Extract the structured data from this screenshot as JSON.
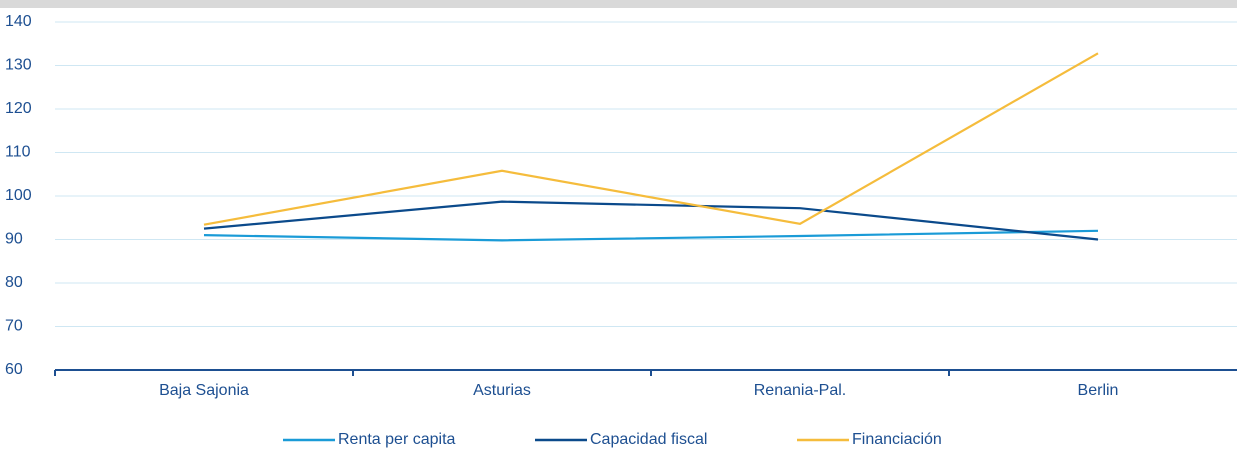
{
  "chart_data": {
    "type": "line",
    "categories": [
      "Baja Sajonia",
      "Asturias",
      "Renania-Pal.",
      "Berlin"
    ],
    "series": [
      {
        "name": "Renta per capita",
        "color": "#1a9bd7",
        "values": [
          91,
          89.8,
          90.8,
          92
        ]
      },
      {
        "name": "Capacidad fiscal",
        "color": "#0b4a8b",
        "values": [
          92.5,
          98.7,
          97.2,
          90
        ]
      },
      {
        "name": "Financiación",
        "color": "#f5bc3c",
        "values": [
          93.4,
          105.8,
          93.6,
          132.8
        ]
      }
    ],
    "ylim": [
      60,
      140
    ],
    "yticks": [
      60,
      70,
      80,
      90,
      100,
      110,
      120,
      130,
      140
    ],
    "grid": true
  }
}
